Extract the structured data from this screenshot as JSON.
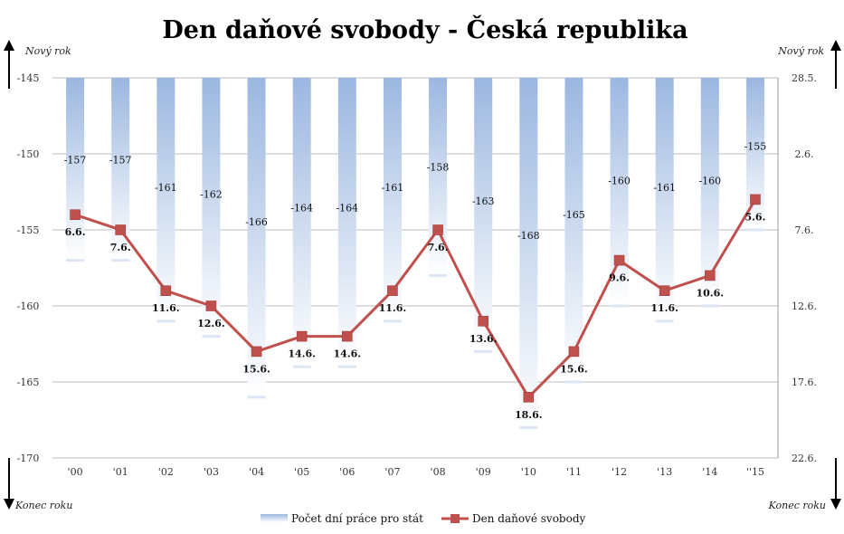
{
  "chart_data": {
    "type": "bar",
    "title": "Den daňové svobody - Česká republika",
    "categories": [
      "'00",
      "'01",
      "'02",
      "'03",
      "'04",
      "'05",
      "'06",
      "'07",
      "'08",
      "'09",
      "'10",
      "'11",
      "'12",
      "'13",
      "'14",
      "''15"
    ],
    "series": [
      {
        "name": "Počet dní práce pro stát",
        "type": "bar",
        "values": [
          -157,
          -157,
          -161,
          -162,
          -166,
          -164,
          -164,
          -161,
          -158,
          -163,
          -168,
          -165,
          -160,
          -161,
          -160,
          -155
        ],
        "color": "#9bb7e0"
      },
      {
        "name": "Den daňové svobody",
        "type": "line",
        "values": [
          -154,
          -155,
          -159,
          -160,
          -163,
          -162,
          -162,
          -159,
          -155,
          -161,
          -166,
          -163,
          -157,
          -159,
          -158,
          -153
        ],
        "labels": [
          "6.6.",
          "7.6.",
          "11.6.",
          "12.6.",
          "15.6.",
          "14.6.",
          "14.6.",
          "11.6.",
          "7.6.",
          "13.6.",
          "18.6.",
          "15.6.",
          "9.6.",
          "11.6.",
          "10.6.",
          "5.6."
        ],
        "color": "#c0504d"
      }
    ],
    "ylim": [
      -170,
      -145
    ],
    "y_ticks": [
      -145,
      -150,
      -155,
      -160,
      -165,
      -170
    ],
    "y2_ticks": [
      "28.5.",
      "2.6.",
      "7.6.",
      "12.6.",
      "17.6.",
      "22.6."
    ],
    "grid": true,
    "legend": "bottom"
  },
  "annotations": {
    "top_left": "Nový rok",
    "top_right": "Nový rok",
    "bottom_left": "Konec roku",
    "bottom_right": "Konec roku"
  }
}
